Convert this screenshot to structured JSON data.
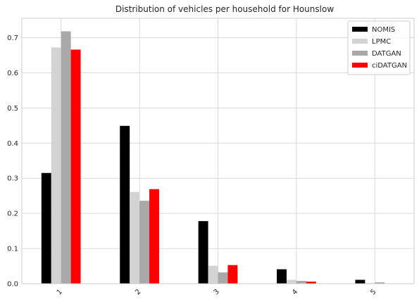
{
  "chart_data": {
    "type": "bar",
    "title": "Distribution of vehicles per household for Hounslow",
    "xlabel": "",
    "ylabel": "",
    "categories": [
      "1",
      "2",
      "3",
      "4",
      "5"
    ],
    "yticks": [
      "0.0",
      "0.1",
      "0.2",
      "0.3",
      "0.4",
      "0.5",
      "0.6",
      "0.7"
    ],
    "ylim": [
      0,
      0.755
    ],
    "grid": true,
    "legend_position": "top-right",
    "series": [
      {
        "name": "NOMIS",
        "color": "#000000",
        "values": [
          0.315,
          0.449,
          0.178,
          0.041,
          0.011
        ]
      },
      {
        "name": "LPMC",
        "color": "#d3d3d3",
        "values": [
          0.672,
          0.261,
          0.051,
          0.011,
          0.002
        ]
      },
      {
        "name": "DATGAN",
        "color": "#a9a9a9",
        "values": [
          0.718,
          0.236,
          0.032,
          0.008,
          0.004
        ]
      },
      {
        "name": "ciDATGAN",
        "color": "#ff0000",
        "values": [
          0.666,
          0.269,
          0.053,
          0.006,
          0.001
        ]
      }
    ]
  }
}
